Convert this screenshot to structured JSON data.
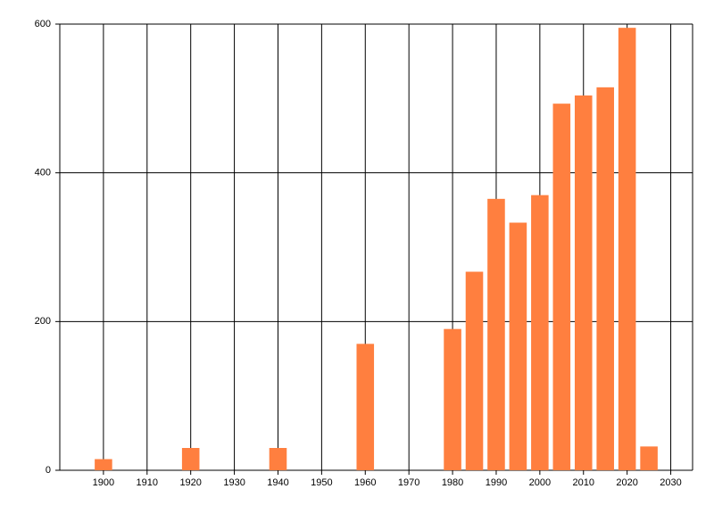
{
  "chart_data": {
    "type": "bar",
    "x": [
      1900,
      1920,
      1940,
      1960,
      1980,
      1985,
      1990,
      1995,
      2000,
      2005,
      2010,
      2015,
      2020,
      2025
    ],
    "values": [
      15,
      30,
      30,
      170,
      190,
      267,
      365,
      333,
      370,
      493,
      504,
      515,
      595,
      32
    ],
    "color": "#ff7f3f",
    "xlim": [
      1890,
      2035
    ],
    "xticks": [
      1900,
      1910,
      1920,
      1930,
      1940,
      1950,
      1960,
      1970,
      1980,
      1990,
      2000,
      2010,
      2020,
      2030
    ],
    "ylim": [
      0,
      600
    ],
    "yticks": [
      0,
      200,
      400,
      600
    ],
    "grid": true
  }
}
